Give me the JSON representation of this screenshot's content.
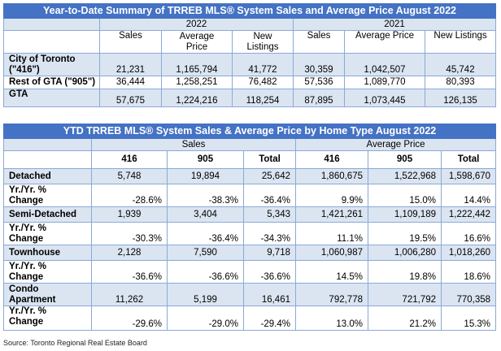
{
  "table1": {
    "title": "Year-to-Date Summary of TRREB MLS® System Sales and Average Price August 2022",
    "year_2022": "2022",
    "year_2021": "2021",
    "headers": {
      "sales_2022": "Sales",
      "avg_2022_line1": "Average",
      "avg_2022_line2": "Price",
      "new_2022_line1": "New",
      "new_2022_line2": "Listings",
      "sales_2021": "Sales",
      "avg_2021": "Average Price",
      "new_2021": "New Listings"
    },
    "rows": [
      {
        "label_line1": "City of Toronto",
        "label_line2": "(\"416\")",
        "values": [
          "21,231",
          "1,165,794",
          "41,772",
          "30,359",
          "1,042,507",
          "45,742"
        ]
      },
      {
        "label": "Rest of GTA (\"905\")",
        "values": [
          "36,444",
          "1,258,251",
          "76,482",
          "57,536",
          "1,089,770",
          "80,393"
        ]
      },
      {
        "label": "GTA",
        "values": [
          "57,675",
          "1,224,216",
          "118,254",
          "87,895",
          "1,073,445",
          "126,135"
        ]
      }
    ]
  },
  "table2": {
    "title": "YTD TRREB MLS® System Sales & Average Price by Home Type August 2022",
    "group_sales": "Sales",
    "group_price": "Average Price",
    "subheaders": [
      "416",
      "905",
      "Total",
      "416",
      "905",
      "Total"
    ],
    "rows": [
      {
        "label": "Detached",
        "values": [
          "5,748",
          "19,894",
          "25,642",
          "1,860,675",
          "1,522,968",
          "1,598,670"
        ]
      },
      {
        "label_line1": "Yr./Yr. %",
        "label_line2": "Change",
        "values": [
          "-28.6%",
          "-38.3%",
          "-36.4%",
          "9.9%",
          "15.0%",
          "14.4%"
        ]
      },
      {
        "label": "Semi-Detached",
        "values": [
          "1,939",
          "3,404",
          "5,343",
          "1,421,261",
          "1,109,189",
          "1,222,442"
        ]
      },
      {
        "label_line1": "Yr./Yr. %",
        "label_line2": "Change",
        "values": [
          "-30.3%",
          "-36.4%",
          "-34.3%",
          "11.1%",
          "19.5%",
          "16.6%"
        ]
      },
      {
        "label": "Townhouse",
        "values": [
          "2,128",
          "7,590",
          "9,718",
          "1,060,987",
          "1,006,280",
          "1,018,260"
        ]
      },
      {
        "label_line1": "Yr./Yr. %",
        "label_line2": "Change",
        "values": [
          "-36.6%",
          "-36.6%",
          "-36.6%",
          "14.5%",
          "19.8%",
          "18.6%"
        ]
      },
      {
        "label_line1": "Condo",
        "label_line2": "Apartment",
        "values": [
          "11,262",
          "5,199",
          "16,461",
          "792,778",
          "721,792",
          "770,358"
        ]
      },
      {
        "label_line1": "Yr./Yr. %",
        "label_line2": "Change",
        "values": [
          "-29.6%",
          "-29.0%",
          "-29.4%",
          "13.0%",
          "21.2%",
          "15.3%"
        ]
      }
    ]
  },
  "source": "Source: Toronto Regional Real Estate Board"
}
